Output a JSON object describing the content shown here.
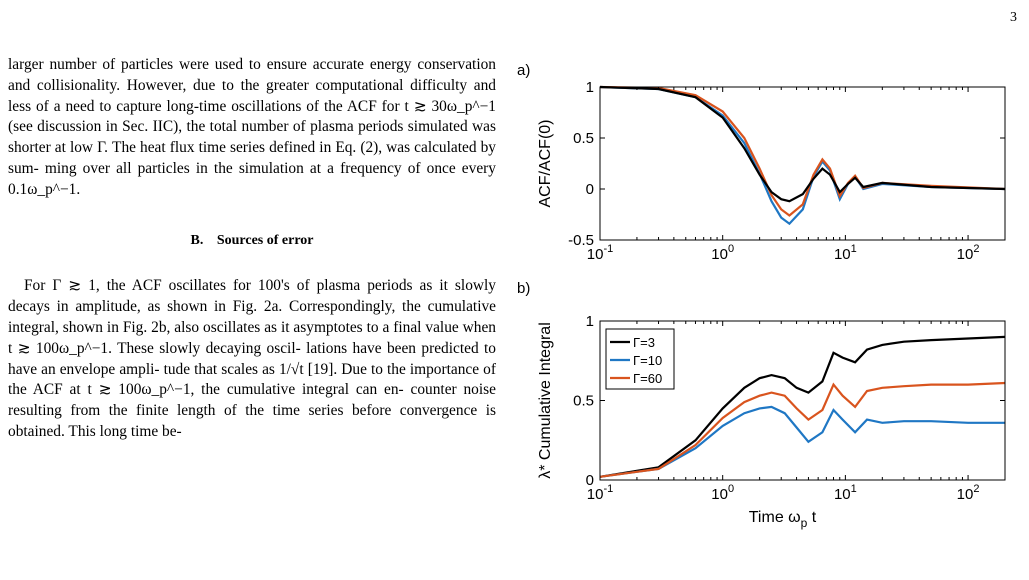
{
  "page": {
    "number": "3"
  },
  "left_column": {
    "para1_lines": [
      "larger number of particles were used to ensure accurate",
      "energy conservation and collisionality. However, due to",
      "the greater computational difficulty and less of a need to",
      "capture long-time oscillations of the ACF for t ≳ 30ω_p^−1",
      "(see discussion in Sec. IIC), the total number of plasma",
      "periods simulated was shorter at low Γ. The heat flux",
      "time series defined in Eq. (2), was calculated by sum-",
      "ming over all particles in the simulation at a frequency",
      "of once every 0.1ω_p^−1."
    ],
    "section": {
      "number": "B.",
      "title": "Sources of error"
    },
    "para2_lines": [
      "For Γ ≳ 1, the ACF oscillates for 100's of plasma",
      "periods as it slowly decays in amplitude, as shown in",
      "Fig. 2a. Correspondingly, the cumulative integral, shown",
      "in Fig. 2b, also oscillates as it asymptotes to a final",
      "value when t ≳ 100ω_p^−1. These slowly decaying oscil-",
      "lations have been predicted to have an envelope ampli-",
      "tude that scales as 1/√t [19]. Due to the importance of",
      "the ACF at t ≳ 100ω_p^−1, the cumulative integral can en-",
      "counter noise resulting from the finite length of the time",
      "series before convergence is obtained. This long time be-"
    ]
  },
  "figure": {
    "panel_a_tag": "a)",
    "panel_b_tag": "b)"
  },
  "chart_data": [
    {
      "type": "line",
      "panel": "a)",
      "xscale": "log",
      "xlim": [
        0.1,
        200
      ],
      "ylim": [
        -0.5,
        1
      ],
      "xticks": [
        "10^-1",
        "10^0",
        "10^1",
        "10^2"
      ],
      "yticks": [
        "-0.5",
        "0",
        "0.5",
        "1"
      ],
      "ylabel": "ACF/ACF(0)",
      "xlabel": "",
      "series": [
        {
          "color": "#1f77c4",
          "x": [
            0.1,
            0.3,
            0.6,
            1.0,
            1.5,
            2.0,
            2.5,
            3.0,
            3.5,
            4.5,
            5.5,
            6.5,
            7.5,
            9.0,
            10.5,
            12.0,
            14.0,
            20,
            50,
            200
          ],
          "y": [
            1.0,
            0.98,
            0.9,
            0.72,
            0.45,
            0.15,
            -0.12,
            -0.28,
            -0.34,
            -0.2,
            0.12,
            0.27,
            0.18,
            -0.1,
            0.05,
            0.12,
            0.0,
            0.05,
            0.02,
            0.0
          ]
        },
        {
          "color": "#d9541e",
          "x": [
            0.1,
            0.3,
            0.6,
            1.0,
            1.5,
            2.0,
            2.5,
            3.0,
            3.5,
            4.5,
            5.5,
            6.5,
            7.5,
            9.0,
            10.5,
            12.0,
            14.0,
            20,
            50,
            200
          ],
          "y": [
            1.0,
            0.99,
            0.92,
            0.76,
            0.5,
            0.2,
            -0.06,
            -0.2,
            -0.26,
            -0.15,
            0.14,
            0.29,
            0.2,
            -0.07,
            0.06,
            0.13,
            0.01,
            0.06,
            0.03,
            0.0
          ]
        },
        {
          "color": "#000000",
          "x": [
            0.1,
            0.3,
            0.6,
            1.0,
            1.5,
            2.0,
            2.5,
            3.0,
            3.5,
            4.5,
            5.5,
            6.5,
            7.5,
            9.0,
            10.5,
            12.0,
            14.0,
            20,
            50,
            200
          ],
          "y": [
            1.0,
            0.98,
            0.9,
            0.7,
            0.4,
            0.14,
            -0.03,
            -0.1,
            -0.12,
            -0.05,
            0.1,
            0.2,
            0.14,
            -0.03,
            0.05,
            0.11,
            0.02,
            0.06,
            0.02,
            0.0
          ]
        }
      ]
    },
    {
      "type": "line",
      "panel": "b)",
      "xscale": "log",
      "xlim": [
        0.1,
        200
      ],
      "ylim": [
        0,
        1
      ],
      "xticks": [
        "10^-1",
        "10^0",
        "10^1",
        "10^2"
      ],
      "yticks": [
        "0",
        "0.5",
        "1"
      ],
      "ylabel": "λ* Cumulative Integral",
      "xlabel": "Time  ω_p t",
      "legend": "top-left",
      "series": [
        {
          "name": "Γ=3",
          "color": "#000000",
          "x": [
            0.1,
            0.3,
            0.6,
            1.0,
            1.5,
            2.0,
            2.5,
            3.2,
            4.0,
            5.0,
            6.5,
            8.0,
            9.5,
            12,
            15,
            20,
            30,
            50,
            100,
            200
          ],
          "y": [
            0.02,
            0.08,
            0.25,
            0.45,
            0.58,
            0.64,
            0.66,
            0.64,
            0.58,
            0.55,
            0.62,
            0.8,
            0.77,
            0.74,
            0.82,
            0.85,
            0.87,
            0.88,
            0.89,
            0.9
          ]
        },
        {
          "name": "Γ=10",
          "color": "#1f77c4",
          "x": [
            0.1,
            0.3,
            0.6,
            1.0,
            1.5,
            2.0,
            2.5,
            3.2,
            4.0,
            5.0,
            6.5,
            8.0,
            9.5,
            12,
            15,
            20,
            30,
            50,
            100,
            200
          ],
          "y": [
            0.02,
            0.07,
            0.2,
            0.34,
            0.42,
            0.45,
            0.46,
            0.42,
            0.33,
            0.24,
            0.3,
            0.44,
            0.38,
            0.3,
            0.38,
            0.36,
            0.37,
            0.37,
            0.36,
            0.36
          ]
        },
        {
          "name": "Γ=60",
          "color": "#d9541e",
          "x": [
            0.1,
            0.3,
            0.6,
            1.0,
            1.5,
            2.0,
            2.5,
            3.2,
            4.0,
            5.0,
            6.5,
            8.0,
            9.5,
            12,
            15,
            20,
            30,
            50,
            100,
            200
          ],
          "y": [
            0.02,
            0.07,
            0.22,
            0.39,
            0.49,
            0.53,
            0.55,
            0.53,
            0.45,
            0.38,
            0.44,
            0.6,
            0.53,
            0.46,
            0.56,
            0.58,
            0.59,
            0.6,
            0.6,
            0.61
          ]
        }
      ]
    }
  ]
}
